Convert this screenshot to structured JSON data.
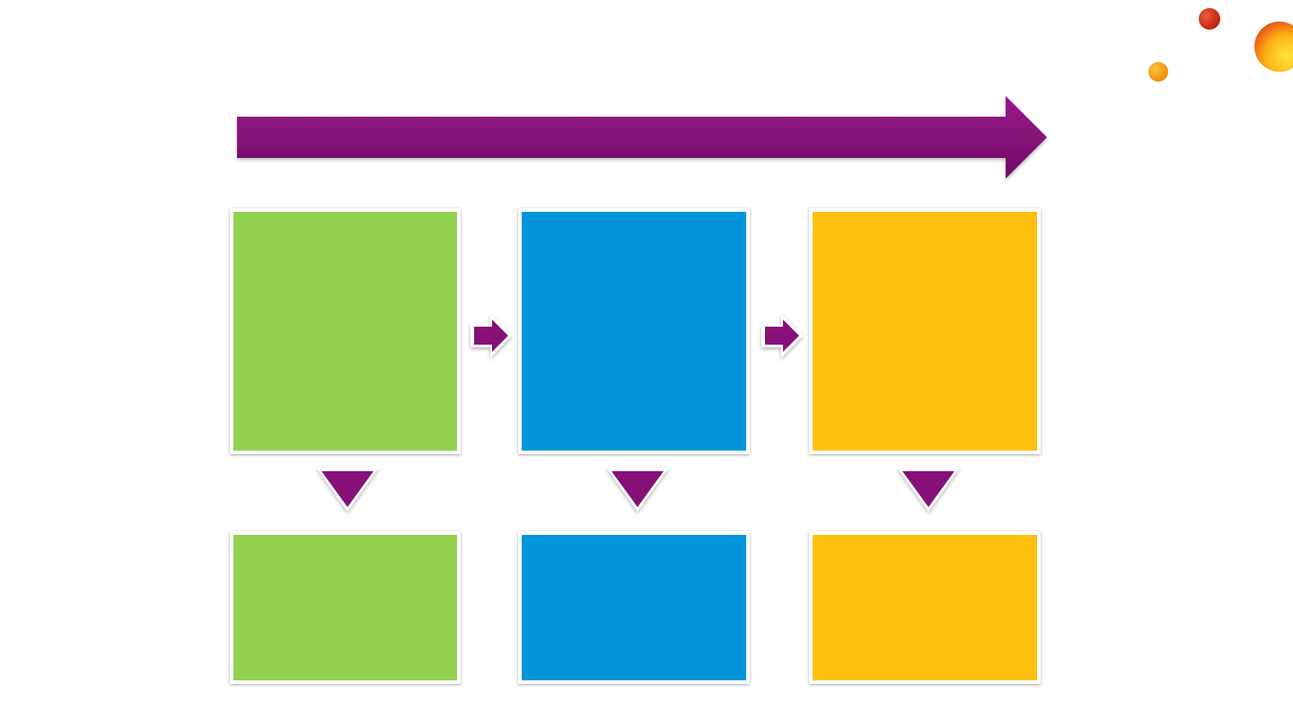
{
  "colors": {
    "purple": "#861078",
    "green": "#92D050",
    "blue": "#0095DA",
    "amber": "#FEC010",
    "dot_red": "#D7301F",
    "dot_orange": "#F39C12",
    "dot_yellow": "#FFD21F"
  },
  "diagram": {
    "columns": [
      {
        "color_key": "green",
        "top_text": "",
        "bottom_text": ""
      },
      {
        "color_key": "blue",
        "top_text": "",
        "bottom_text": ""
      },
      {
        "color_key": "amber",
        "top_text": "",
        "bottom_text": ""
      }
    ]
  }
}
